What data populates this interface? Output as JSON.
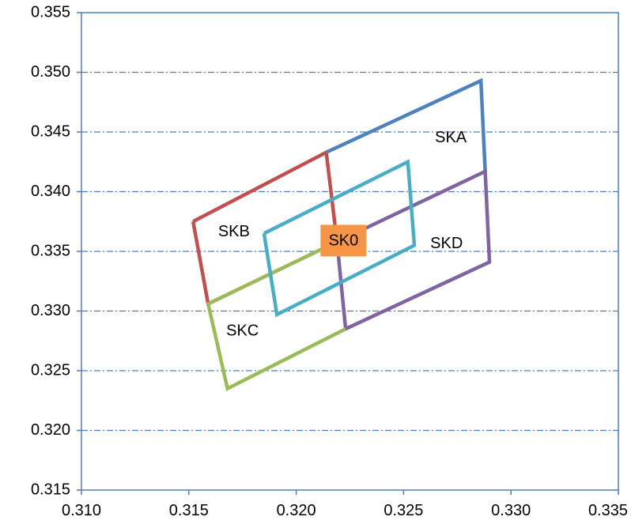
{
  "chart_data": {
    "type": "line",
    "title": "",
    "xlabel": "",
    "ylabel": "",
    "xlim": [
      0.31,
      0.335
    ],
    "ylim": [
      0.315,
      0.355
    ],
    "x_ticks": [
      "0.310",
      "0.315",
      "0.320",
      "0.325",
      "0.330",
      "0.335"
    ],
    "y_ticks": [
      "0.315",
      "0.320",
      "0.325",
      "0.330",
      "0.335",
      "0.340",
      "0.345",
      "0.350",
      "0.355"
    ],
    "x_tick_values": [
      0.31,
      0.315,
      0.32,
      0.325,
      0.33,
      0.335
    ],
    "y_tick_values": [
      0.315,
      0.32,
      0.325,
      0.33,
      0.335,
      0.34,
      0.345,
      0.35,
      0.355
    ],
    "grid": {
      "horizontal": true,
      "vertical": false,
      "style": "dash-dot",
      "color": "#4a7ebb"
    },
    "axis_color": "#4a7ebb",
    "series": [
      {
        "color": "#c0504d",
        "points": [
          [
            0.3152,
            0.3375
          ],
          [
            0.3214,
            0.3433
          ],
          [
            0.3219,
            0.3358
          ],
          [
            0.3159,
            0.3306
          ],
          [
            0.3152,
            0.3375
          ]
        ]
      },
      {
        "color": "#4f81bd",
        "points": [
          [
            0.3214,
            0.3433
          ],
          [
            0.3286,
            0.3493
          ],
          [
            0.3288,
            0.3417
          ]
        ]
      },
      {
        "color": "#8064a2",
        "points": [
          [
            0.3219,
            0.3358
          ],
          [
            0.3288,
            0.3417
          ],
          [
            0.329,
            0.3341
          ],
          [
            0.3223,
            0.3285
          ],
          [
            0.3219,
            0.3358
          ]
        ]
      },
      {
        "color": "#9bbb59",
        "points": [
          [
            0.3219,
            0.3358
          ],
          [
            0.3159,
            0.3306
          ],
          [
            0.3168,
            0.3235
          ],
          [
            0.3223,
            0.3285
          ]
        ]
      },
      {
        "color": "#4bacc6",
        "points": [
          [
            0.3185,
            0.3365
          ],
          [
            0.3252,
            0.3425
          ],
          [
            0.3255,
            0.3355
          ],
          [
            0.3191,
            0.3297
          ],
          [
            0.3185,
            0.3365
          ]
        ]
      }
    ],
    "region_labels": [
      {
        "text": "SKA",
        "x": 0.3272,
        "y": 0.3445
      },
      {
        "text": "SKB",
        "x": 0.3171,
        "y": 0.3366
      },
      {
        "text": "SKC",
        "x": 0.3175,
        "y": 0.3283
      },
      {
        "text": "SKD",
        "x": 0.327,
        "y": 0.3356
      }
    ],
    "center_marker": {
      "text": "SK0",
      "x": 0.3222,
      "y": 0.3359,
      "color": "#f79646"
    }
  }
}
